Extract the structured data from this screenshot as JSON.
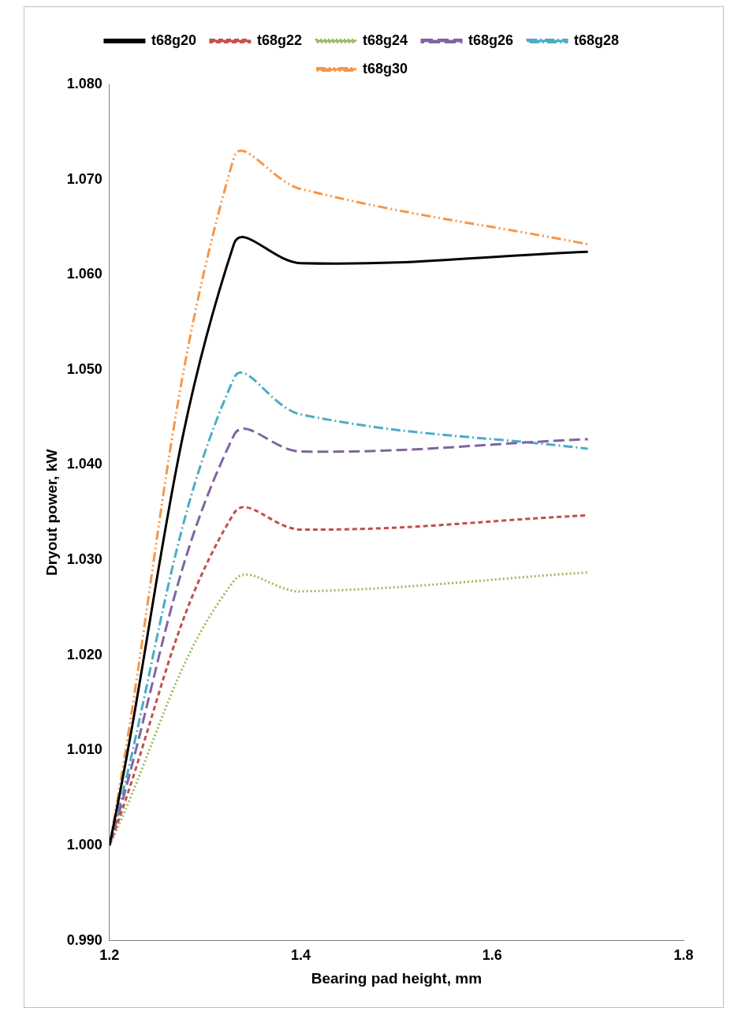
{
  "chart_data": {
    "type": "line",
    "x_label": "Bearing pad height, mm",
    "y_label": "Dryout power, kW",
    "x": [
      1.2,
      1.33,
      1.4,
      1.7
    ],
    "series": [
      {
        "name": "t68g20",
        "color": "#000000",
        "line_style": "solid",
        "values": [
          1.0,
          1.0632,
          1.0612,
          1.0624
        ]
      },
      {
        "name": "t68g22",
        "color": "#c0504d",
        "line_style": "dashed",
        "values": [
          1.0,
          1.0349,
          1.0332,
          1.0347
        ]
      },
      {
        "name": "t68g24",
        "color": "#9bbb59",
        "line_style": "dotted",
        "values": [
          1.0,
          1.0278,
          1.0267,
          1.0287
        ]
      },
      {
        "name": "t68g26",
        "color": "#8064a2",
        "line_style": "long_dash",
        "values": [
          1.0,
          1.0431,
          1.0414,
          1.0427
        ]
      },
      {
        "name": "t68g28",
        "color": "#4bacc6",
        "line_style": "dash_dot",
        "values": [
          1.0,
          1.0491,
          1.0453,
          1.0417
        ]
      },
      {
        "name": "t68g30",
        "color": "#f79646",
        "line_style": "dash_dot_dot",
        "values": [
          1.0,
          1.0723,
          1.069,
          1.0632
        ]
      }
    ],
    "xlim": [
      1.2,
      1.8
    ],
    "xticks": [
      1.2,
      1.4,
      1.6,
      1.8
    ],
    "ylim": [
      0.99,
      1.08
    ],
    "yticks": [
      {
        "value": 0.99,
        "label": "0.990"
      },
      {
        "value": 1.0,
        "label": "1.000"
      },
      {
        "value": 1.01,
        "label": "1.010"
      },
      {
        "value": 1.02,
        "label": "1.020"
      },
      {
        "value": 1.03,
        "label": "1.030"
      },
      {
        "value": 1.04,
        "label": "1.040"
      },
      {
        "value": 1.05,
        "label": "1.050"
      },
      {
        "value": 1.06,
        "label": "1.060"
      },
      {
        "value": 1.07,
        "label": "1.070"
      },
      {
        "value": 1.08,
        "label": "1.080"
      }
    ],
    "grid": false,
    "legend": "top"
  }
}
